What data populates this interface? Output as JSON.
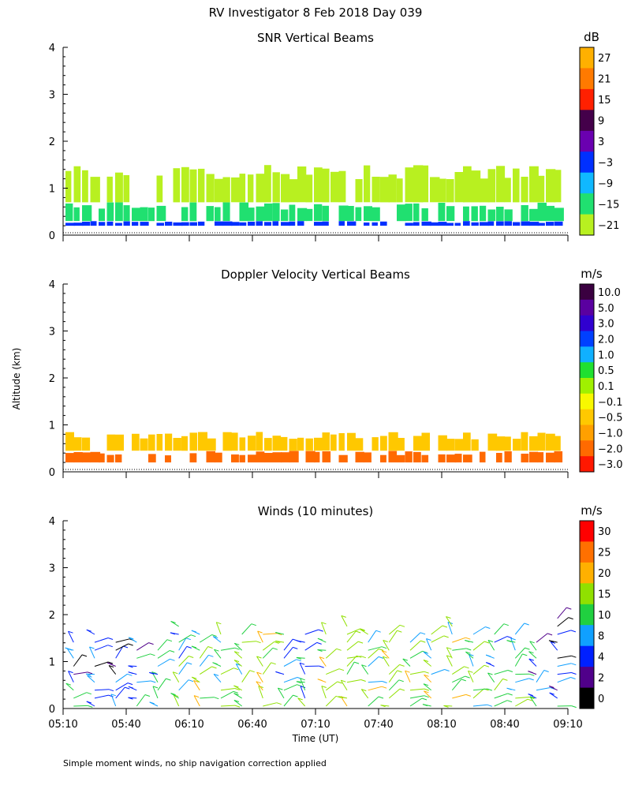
{
  "figure": {
    "suptitle": "RV Investigator   8 Feb 2018 Day 039",
    "ylabel": "Altitude (km)",
    "xlabel": "Time (UT)",
    "footnote": "Simple moment winds, no ship navigation correction applied",
    "x_ticks": [
      "05:10",
      "05:40",
      "06:10",
      "06:40",
      "07:10",
      "07:40",
      "08:10",
      "08:40",
      "09:10"
    ],
    "y_ticks": [
      "0",
      "1",
      "2",
      "3",
      "4"
    ]
  },
  "chart_data": [
    {
      "type": "heatmap",
      "title": "SNR Vertical Beams",
      "xlim": [
        "05:10",
        "09:10"
      ],
      "ylim": [
        0,
        4
      ],
      "colorbar": {
        "unit": "dB",
        "labels": [
          "27",
          "21",
          "15",
          "9",
          "3",
          "−3",
          "−9",
          "−15",
          "−21"
        ],
        "colors": [
          "#ffb000",
          "#ff7a00",
          "#ff2000",
          "#44004a",
          "#6a00b0",
          "#0030ff",
          "#10b8ff",
          "#20e070",
          "#b8f020"
        ]
      },
      "layers": [
        {
          "alt_km": [
            0.2,
            0.3
          ],
          "snr_db": -3
        },
        {
          "alt_km": [
            0.3,
            0.7
          ],
          "snr_db": -15
        },
        {
          "alt_km": [
            0.7,
            1.5
          ],
          "snr_db": -21
        }
      ]
    },
    {
      "type": "heatmap",
      "title": "Doppler Velocity Vertical Beams",
      "xlim": [
        "05:10",
        "09:10"
      ],
      "ylim": [
        0,
        4
      ],
      "colorbar": {
        "unit": "m/s",
        "labels": [
          "10.0",
          "5.0",
          "3.0",
          "2.0",
          "1.0",
          "0.5",
          "0.1",
          "−0.1",
          "−0.5",
          "−1.0",
          "−2.0",
          "−3.0"
        ],
        "colors": [
          "#3a0040",
          "#5a00a0",
          "#3000d0",
          "#0040ff",
          "#10b0ff",
          "#20e030",
          "#a0f000",
          "#f8f800",
          "#ffc800",
          "#ffa000",
          "#ff6a00",
          "#ff1800"
        ]
      },
      "layers": [
        {
          "alt_km": [
            0.2,
            0.45
          ],
          "velocity_ms": -2.0
        },
        {
          "alt_km": [
            0.45,
            0.85
          ],
          "velocity_ms": -0.5
        }
      ]
    },
    {
      "type": "scatter",
      "title": "Winds (10 minutes)",
      "xlim": [
        "05:10",
        "09:10"
      ],
      "ylim": [
        0,
        4
      ],
      "colorbar": {
        "unit": "m/s",
        "labels": [
          "30",
          "25",
          "20",
          "15",
          "10",
          "8",
          "4",
          "2",
          "0"
        ],
        "colors": [
          "#ff0000",
          "#ff7000",
          "#ffb000",
          "#90e000",
          "#20d040",
          "#10a0ff",
          "#0020ff",
          "#50008a",
          "#000000"
        ]
      },
      "wind_columns": [
        "05:15",
        "05:25",
        "05:35",
        "05:45",
        "05:55",
        "06:05",
        "06:15",
        "06:25",
        "06:35",
        "06:45",
        "06:55",
        "07:05",
        "07:15",
        "07:25",
        "07:35",
        "07:45",
        "07:55",
        "08:05",
        "08:15",
        "08:25",
        "08:35",
        "08:45",
        "08:55",
        "09:05"
      ],
      "max_alt_km": [
        1.5,
        1.6,
        1.5,
        1.5,
        1.4,
        1.8,
        1.7,
        1.6,
        1.6,
        1.6,
        1.6,
        1.7,
        1.7,
        1.9,
        1.7,
        1.7,
        1.5,
        1.7,
        1.8,
        1.6,
        1.7,
        1.7,
        1.5,
        2.0
      ],
      "speed_ms": [
        6,
        5,
        4,
        8,
        10,
        12,
        15,
        12,
        14,
        16,
        12,
        10,
        16,
        18,
        14,
        17,
        15,
        14,
        16,
        12,
        10,
        12,
        8,
        6
      ]
    }
  ]
}
